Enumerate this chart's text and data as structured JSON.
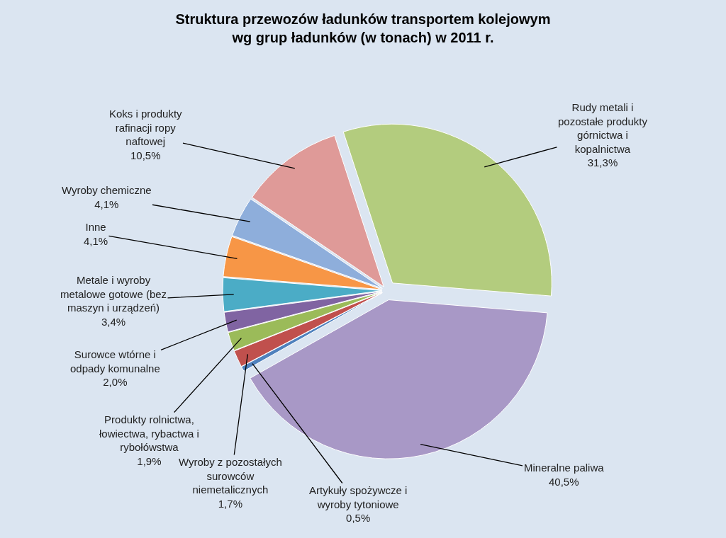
{
  "chart_data": {
    "type": "pie",
    "title": "Struktura przewozów ładunków transportem kolejowym wg grup ładunków (w tonach) w 2011 r.",
    "categories": [
      "Rudy metali i pozostałe produkty górnictwa i kopalnictwa",
      "Mineralne paliwa",
      "Artykuły spożywcze i wyroby tytoniowe",
      "Wyroby z pozostałych surowców niemetalicznych",
      "Produkty rolnictwa, łowiectwa, rybactwa i rybołówstwa",
      "Surowce wtórne i odpady komunalne",
      "Metale i wyroby metalowe gotowe (bez maszyn i urządzeń)",
      "Inne",
      "Wyroby chemiczne",
      "Koks i produkty rafinacji ropy naftowej"
    ],
    "values": [
      31.3,
      40.5,
      0.5,
      1.7,
      1.9,
      2.0,
      3.4,
      4.1,
      4.1,
      10.5
    ],
    "value_labels": [
      "31,3%",
      "40,5%",
      "0,5%",
      "1,7%",
      "1,9%",
      "2,0%",
      "3,4%",
      "4,1%",
      "4,1%",
      "10,5%"
    ],
    "colors": [
      "#b3cc7e",
      "#a898c6",
      "#4f81bd",
      "#c0504d",
      "#9bbb59",
      "#8064a2",
      "#4bacc6",
      "#f79646",
      "#8eaedb",
      "#df9a98"
    ],
    "legend": false
  }
}
